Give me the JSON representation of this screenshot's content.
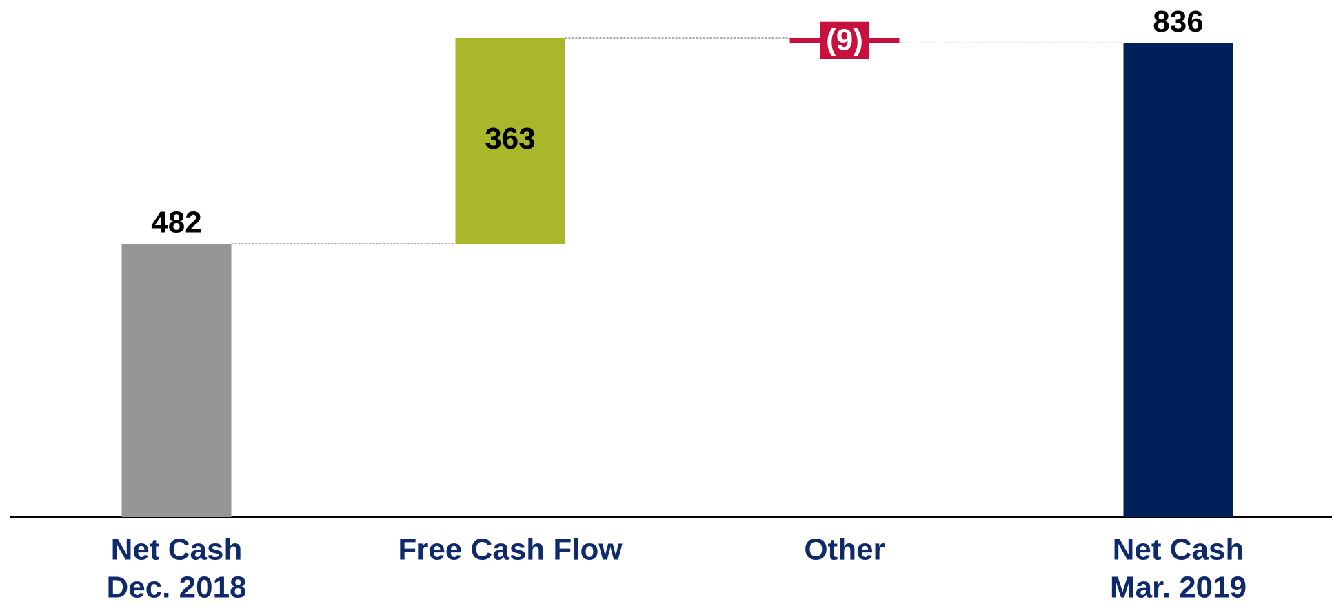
{
  "chart_data": {
    "type": "waterfall",
    "categories": [
      [
        "Net Cash",
        "Dec. 2018"
      ],
      [
        "Free Cash Flow"
      ],
      [
        "Other"
      ],
      [
        "Net Cash",
        "Mar. 2019"
      ]
    ],
    "values": [
      482,
      363,
      -9,
      836
    ],
    "value_labels": [
      "482",
      "363",
      "(9)",
      "836"
    ],
    "colors": [
      "#969696",
      "#a8b82a",
      "#c8103e",
      "#00205b"
    ]
  }
}
